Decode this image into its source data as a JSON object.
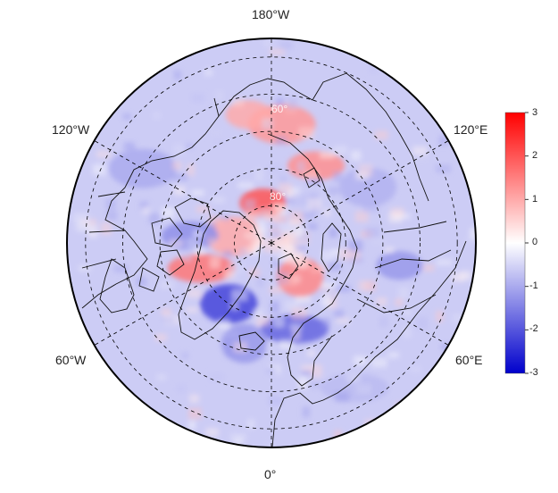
{
  "map": {
    "projection": "north-polar-stereographic",
    "center_latitude": 90,
    "lat_circles": [
      40,
      50,
      60,
      70,
      80
    ],
    "meridians_deg": [
      0,
      60,
      120,
      180,
      240,
      300
    ],
    "inner_grid_label": "80°",
    "inner_grid_label2": "60°",
    "lon_labels": {
      "top": "180°W",
      "bottom": "0°",
      "upper_left": "120°W",
      "lower_left": "60°W",
      "upper_right": "120°E",
      "lower_right": "60°E"
    }
  },
  "colorbar": {
    "min": -3,
    "max": 3,
    "ticks": [
      "3",
      "2",
      "1",
      "0",
      "-1",
      "-2",
      "-3"
    ],
    "colors": {
      "low": "#0000cc",
      "mid": "#ffffff",
      "high": "#ff0000"
    }
  },
  "anomaly_field": {
    "background": -0.6,
    "blobs": [
      {
        "lat": 79,
        "lon": -168,
        "value": 2.0
      },
      {
        "lat": 80,
        "lon": -100,
        "value": 1.0
      },
      {
        "lat": 70,
        "lon": -70,
        "value": 1.6
      },
      {
        "lat": 78,
        "lon": 40,
        "value": 1.4
      },
      {
        "lat": 66,
        "lon": 150,
        "value": 1.3
      },
      {
        "lat": 58,
        "lon": 175,
        "value": 1.2
      },
      {
        "lat": 55,
        "lon": -170,
        "value": 1.0
      },
      {
        "lat": 70,
        "lon": -35,
        "value": -2.2
      },
      {
        "lat": 66,
        "lon": 15,
        "value": -1.8
      },
      {
        "lat": 62,
        "lon": -15,
        "value": -1.2
      },
      {
        "lat": 68,
        "lon": -95,
        "value": -1.3
      },
      {
        "lat": 50,
        "lon": -120,
        "value": -1.0
      },
      {
        "lat": 55,
        "lon": 80,
        "value": -1.2
      },
      {
        "lat": 60,
        "lon": 120,
        "value": -0.9
      },
      {
        "lat": 45,
        "lon": 30,
        "value": -0.8
      }
    ]
  }
}
